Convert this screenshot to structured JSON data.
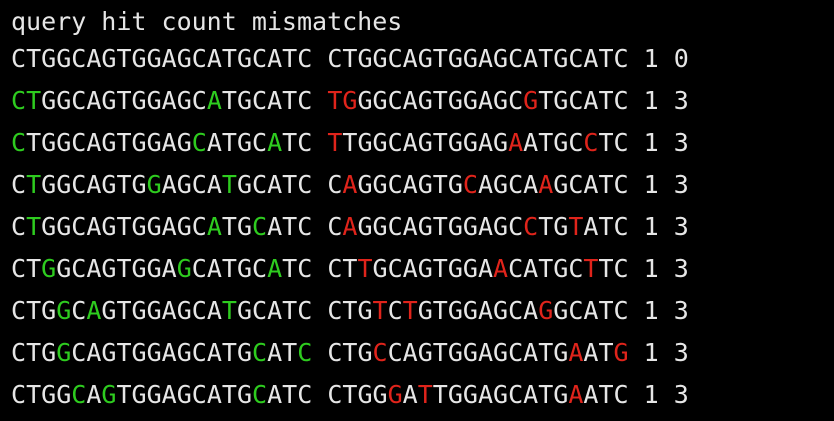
{
  "header": "query hit count mismatches",
  "colors": {
    "background": "#000000",
    "text": "#e6e6e6",
    "query_mismatch": "#2ecc1f",
    "hit_mismatch": "#e0241b"
  },
  "rows": [
    {
      "query": "CTGGCAGTGGAGCATGCATC",
      "hit": "CTGGCAGTGGAGCATGCATC",
      "count": "1",
      "mismatches": "0",
      "mismatch_positions": []
    },
    {
      "query": "CTGGCAGTGGAGCATGCATC",
      "hit": "TGGGCAGTGGAGCGTGCATC",
      "count": "1",
      "mismatches": "3",
      "mismatch_positions": [
        0,
        1,
        13
      ]
    },
    {
      "query": "CTGGCAGTGGAGCATGCATC",
      "hit": "TTGGCAGTGGAGAATGCCTC",
      "count": "1",
      "mismatches": "3",
      "mismatch_positions": [
        0,
        12,
        17
      ]
    },
    {
      "query": "CTGGCAGTGGAGCATGCATC",
      "hit": "CAGGCAGTGCAGCAAGCATC",
      "count": "1",
      "mismatches": "3",
      "mismatch_positions": [
        1,
        9,
        14
      ]
    },
    {
      "query": "CTGGCAGTGGAGCATGCATC",
      "hit": "CAGGCAGTGGAGCCTGTATC",
      "count": "1",
      "mismatches": "3",
      "mismatch_positions": [
        1,
        13,
        16
      ]
    },
    {
      "query": "CTGGCAGTGGAGCATGCATC",
      "hit": "CTTGCAGTGGAACATGCTTC",
      "count": "1",
      "mismatches": "3",
      "mismatch_positions": [
        2,
        11,
        17
      ]
    },
    {
      "query": "CTGGCAGTGGAGCATGCATC",
      "hit": "CTGTCTGTGGAGCAGGCATC",
      "count": "1",
      "mismatches": "3",
      "mismatch_positions": [
        3,
        5,
        14
      ]
    },
    {
      "query": "CTGGCAGTGGAGCATGCATC",
      "hit": "CTGCCAGTGGAGCATGAATG",
      "count": "1",
      "mismatches": "3",
      "mismatch_positions": [
        3,
        16,
        19
      ]
    },
    {
      "query": "CTGGCAGTGGAGCATGCATC",
      "hit": "CTGGGATTGGAGCATGAATC",
      "count": "1",
      "mismatches": "3",
      "mismatch_positions": [
        4,
        6,
        16
      ]
    }
  ]
}
